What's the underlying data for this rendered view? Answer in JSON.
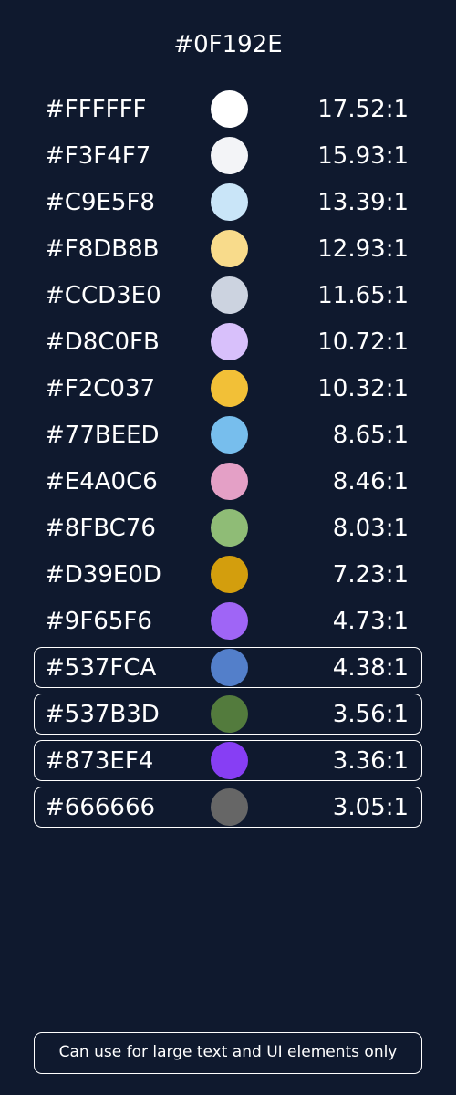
{
  "header": {
    "background_hex": "#0F192E"
  },
  "colors": [
    {
      "hex": "#FFFFFF",
      "ratio": "17.52:1",
      "large_text_only": false
    },
    {
      "hex": "#F3F4F7",
      "ratio": "15.93:1",
      "large_text_only": false
    },
    {
      "hex": "#C9E5F8",
      "ratio": "13.39:1",
      "large_text_only": false
    },
    {
      "hex": "#F8DB8B",
      "ratio": "12.93:1",
      "large_text_only": false
    },
    {
      "hex": "#CCD3E0",
      "ratio": "11.65:1",
      "large_text_only": false
    },
    {
      "hex": "#D8C0FB",
      "ratio": "10.72:1",
      "large_text_only": false
    },
    {
      "hex": "#F2C037",
      "ratio": "10.32:1",
      "large_text_only": false
    },
    {
      "hex": "#77BEED",
      "ratio": "8.65:1",
      "large_text_only": false
    },
    {
      "hex": "#E4A0C6",
      "ratio": "8.46:1",
      "large_text_only": false
    },
    {
      "hex": "#8FBC76",
      "ratio": "8.03:1",
      "large_text_only": false
    },
    {
      "hex": "#D39E0D",
      "ratio": "7.23:1",
      "large_text_only": false
    },
    {
      "hex": "#9F65F6",
      "ratio": "4.73:1",
      "large_text_only": false
    },
    {
      "hex": "#537FCA",
      "ratio": "4.38:1",
      "large_text_only": true
    },
    {
      "hex": "#537B3D",
      "ratio": "3.56:1",
      "large_text_only": true
    },
    {
      "hex": "#873EF4",
      "ratio": "3.36:1",
      "large_text_only": true
    },
    {
      "hex": "#666666",
      "ratio": "3.05:1",
      "large_text_only": true
    }
  ],
  "legend": {
    "note": "Can use for large text and UI elements only"
  }
}
